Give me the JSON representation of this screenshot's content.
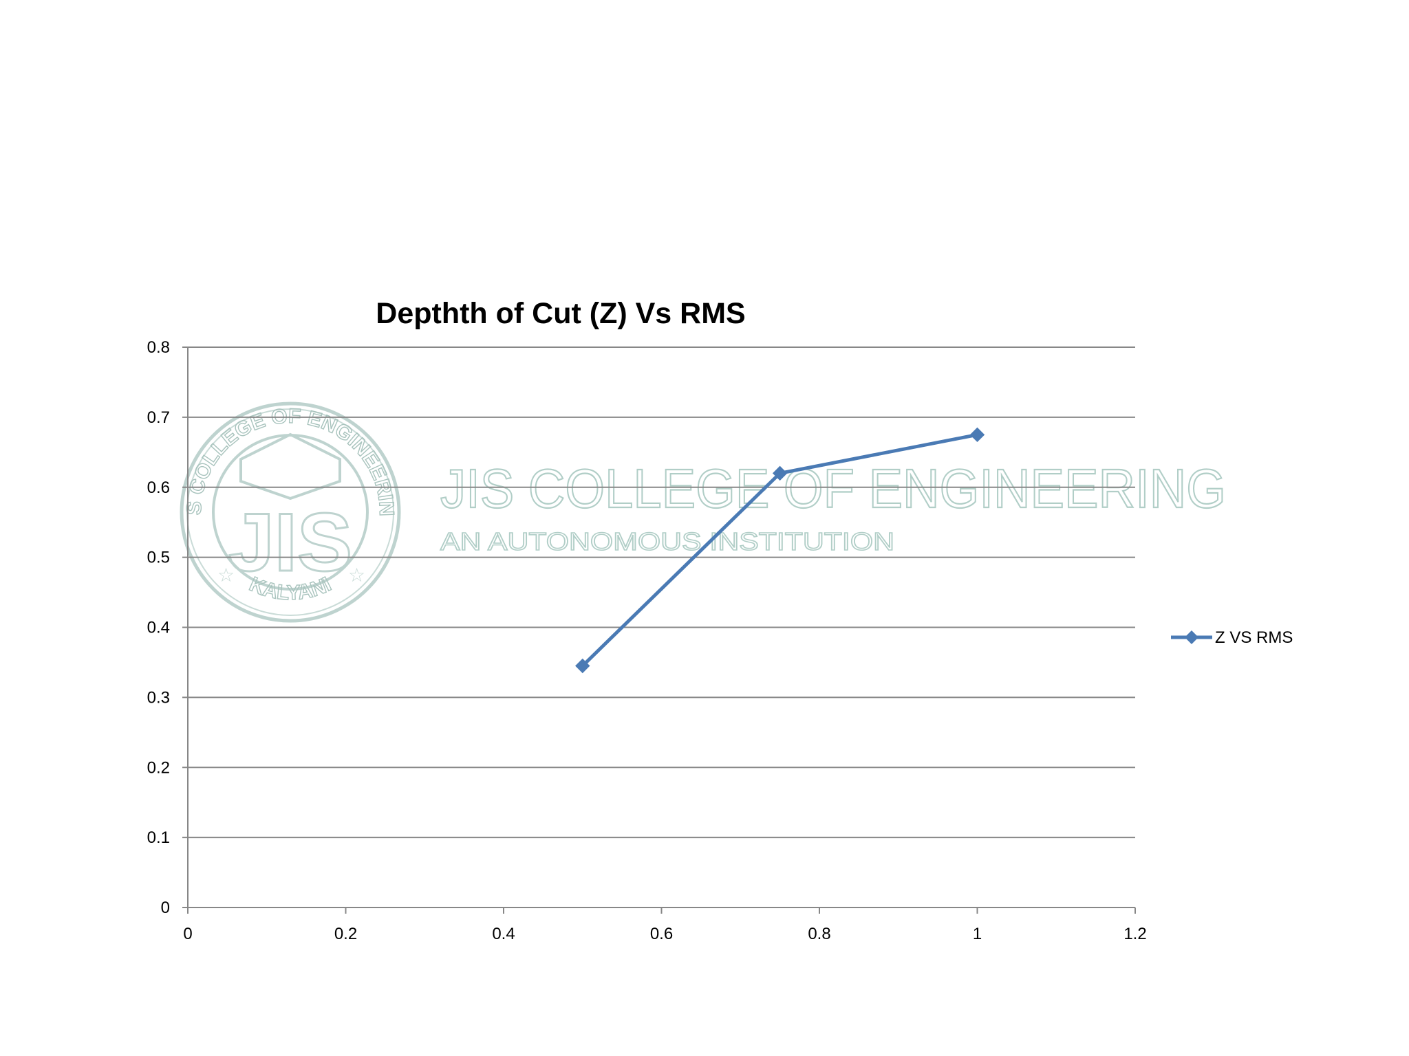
{
  "chart_data": {
    "type": "line",
    "title": "Depthth of Cut (Z)  Vs  RMS",
    "xlabel": "",
    "ylabel": "",
    "xlim": [
      0,
      1.2
    ],
    "ylim": [
      0,
      0.8
    ],
    "x_ticks": [
      "0",
      "0.2",
      "0.4",
      "0.6",
      "0.8",
      "1",
      "1.2"
    ],
    "y_ticks": [
      "0",
      "0.1",
      "0.2",
      "0.3",
      "0.4",
      "0.5",
      "0.6",
      "0.7",
      "0.8"
    ],
    "grid": "horizontal major gridlines",
    "legend_position": "right",
    "series": [
      {
        "name": "Z VS RMS",
        "color": "#4a7ab4",
        "marker": "diamond",
        "x": [
          0.5,
          0.75,
          1.0
        ],
        "y": [
          0.345,
          0.62,
          0.675
        ]
      }
    ]
  },
  "watermark": {
    "name": "JIS COLLEGE OF ENGINEERING",
    "subtitle": "AN AUTONOMOUS INSTITUTION",
    "seal_top": "JIS COLLEGE OF ENGINEERING",
    "seal_bottom": "KALYANI",
    "seal_monogram": "JIS",
    "color": "#a9c9c2"
  }
}
